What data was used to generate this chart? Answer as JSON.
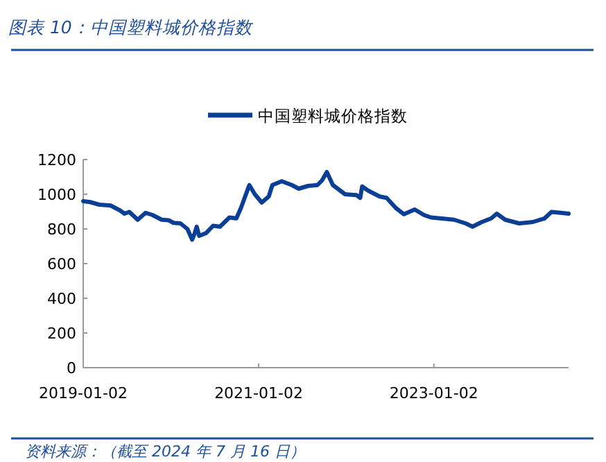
{
  "chart_data": {
    "type": "line",
    "title": "图表 10：中国塑料城价格指数",
    "annotations": [
      "资料来源：（截至 2024 年 7 月 16 日）"
    ],
    "legend": "top",
    "grid": false,
    "marker": "none",
    "line_style": "solid",
    "xlim": [
      "2019-01-02",
      "2024-07-16"
    ],
    "xticks": [
      "2019-01-02",
      "2021-01-02",
      "2023-01-02"
    ],
    "ylim": [
      0,
      1200
    ],
    "yticks": [
      0,
      200,
      400,
      600,
      800,
      1000,
      1200
    ],
    "series": [
      {
        "name": "中国塑料城价格指数",
        "color": "#0b3f95",
        "x": [
          "2019-01-02",
          "2019-01-30",
          "2019-03-10",
          "2019-04-26",
          "2019-06-04",
          "2019-06-23",
          "2019-07-13",
          "2019-08-17",
          "2019-09-19",
          "2019-10-18",
          "2019-11-25",
          "2019-12-24",
          "2020-01-13",
          "2020-02-11",
          "2020-03-11",
          "2020-03-31",
          "2020-04-10",
          "2020-04-19",
          "2020-04-29",
          "2020-05-28",
          "2020-06-26",
          "2020-07-25",
          "2020-09-02",
          "2020-10-01",
          "2020-10-20",
          "2020-11-24",
          "2020-12-17",
          "2021-01-15",
          "2021-02-13",
          "2021-02-28",
          "2021-04-08",
          "2021-05-20",
          "2021-06-18",
          "2021-07-27",
          "2021-09-04",
          "2021-09-23",
          "2021-10-13",
          "2021-11-07",
          "2021-12-28",
          "2022-02-14",
          "2022-03-01",
          "2022-03-09",
          "2022-04-03",
          "2022-05-21",
          "2022-06-19",
          "2022-07-28",
          "2022-08-30",
          "2022-10-14",
          "2022-11-22",
          "2022-12-21",
          "2023-01-28",
          "2023-03-27",
          "2023-05-14",
          "2023-06-12",
          "2023-07-21",
          "2023-08-29",
          "2023-09-21",
          "2023-10-26",
          "2023-12-23",
          "2024-02-18",
          "2024-04-07",
          "2024-05-06",
          "2024-06-13",
          "2024-07-16"
        ],
        "values": [
          960,
          955,
          940,
          935,
          907,
          888,
          898,
          853,
          893,
          880,
          853,
          850,
          835,
          832,
          800,
          738,
          773,
          813,
          760,
          776,
          818,
          813,
          866,
          861,
          920,
          1053,
          1000,
          952,
          987,
          1053,
          1075,
          1053,
          1032,
          1048,
          1053,
          1080,
          1128,
          1053,
          1000,
          995,
          979,
          1045,
          1021,
          987,
          979,
          920,
          885,
          912,
          880,
          866,
          861,
          853,
          832,
          813,
          840,
          861,
          888,
          853,
          832,
          840,
          861,
          898,
          893,
          888
        ]
      }
    ]
  }
}
